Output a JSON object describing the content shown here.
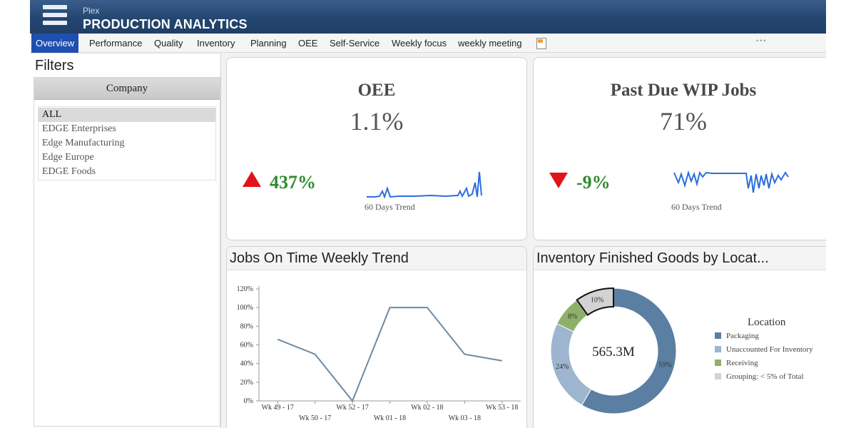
{
  "header": {
    "brand_small": "Plex",
    "title": "PRODUCTION ANALYTICS"
  },
  "nav": {
    "tabs": [
      {
        "label": "Overview",
        "active": true
      },
      {
        "label": "Performance"
      },
      {
        "label": "Quality"
      },
      {
        "label": "Inventory"
      },
      {
        "label": "Planning"
      },
      {
        "label": "OEE"
      },
      {
        "label": "Self-Service"
      },
      {
        "label": "Weekly focus"
      },
      {
        "label": "weekly meeting"
      }
    ]
  },
  "filters": {
    "title": "Filters",
    "company_header": "Company",
    "companies": [
      "ALL",
      "EDGE Enterprises",
      "Edge Manufacturing",
      "Edge Europe",
      "EDGE Foods"
    ],
    "selected": "ALL"
  },
  "kpi_oee": {
    "title": "OEE",
    "value": "1.1%",
    "delta": "437%",
    "direction": "up",
    "trend_label": "60 Days Trend"
  },
  "kpi_wip": {
    "title": "Past Due WIP Jobs",
    "value": "71%",
    "delta": "-9%",
    "direction": "down",
    "trend_label": "60 Days Trend"
  },
  "colors": {
    "header_blue": "#22456f",
    "active_tab": "#1f4fb0",
    "sparkline": "#2a6fdb",
    "up_down_triangle": "#e0151b",
    "delta_green": "#2f8a2f",
    "line_series": "#6c8aa6"
  },
  "chart_data": [
    {
      "type": "line",
      "title": "Jobs On Time Weekly Trend",
      "categories": [
        "Wk 49 - 17",
        "Wk 50 - 17",
        "Wk 52 - 17",
        "Wk 01 - 18",
        "Wk 02 - 18",
        "Wk 03 - 18",
        "Wk 53 - 18"
      ],
      "values": [
        66,
        50,
        0,
        100,
        100,
        50,
        43
      ],
      "yticks": [
        "0%",
        "20%",
        "40%",
        "60%",
        "80%",
        "100%",
        "120%"
      ],
      "ylim": [
        0,
        120
      ],
      "grid": false
    },
    {
      "type": "pie",
      "title": "Inventory Finished Goods by Locat...",
      "center_label": "565.3M",
      "legend_title": "Location",
      "legend_position": "right",
      "slices": [
        {
          "label": "Packaging",
          "value": 59,
          "display": "59%",
          "color": "#5a7fa3"
        },
        {
          "label": "Unaccounted For Inventory",
          "value": 24,
          "display": "24%",
          "color": "#9db5cf"
        },
        {
          "label": "Receiving",
          "value": 8,
          "display": "8%",
          "color": "#8fb06a"
        },
        {
          "label": "Grouping: < 5% of Total",
          "value": 10,
          "display": "10%",
          "color": "#d3d3d3"
        }
      ]
    }
  ]
}
